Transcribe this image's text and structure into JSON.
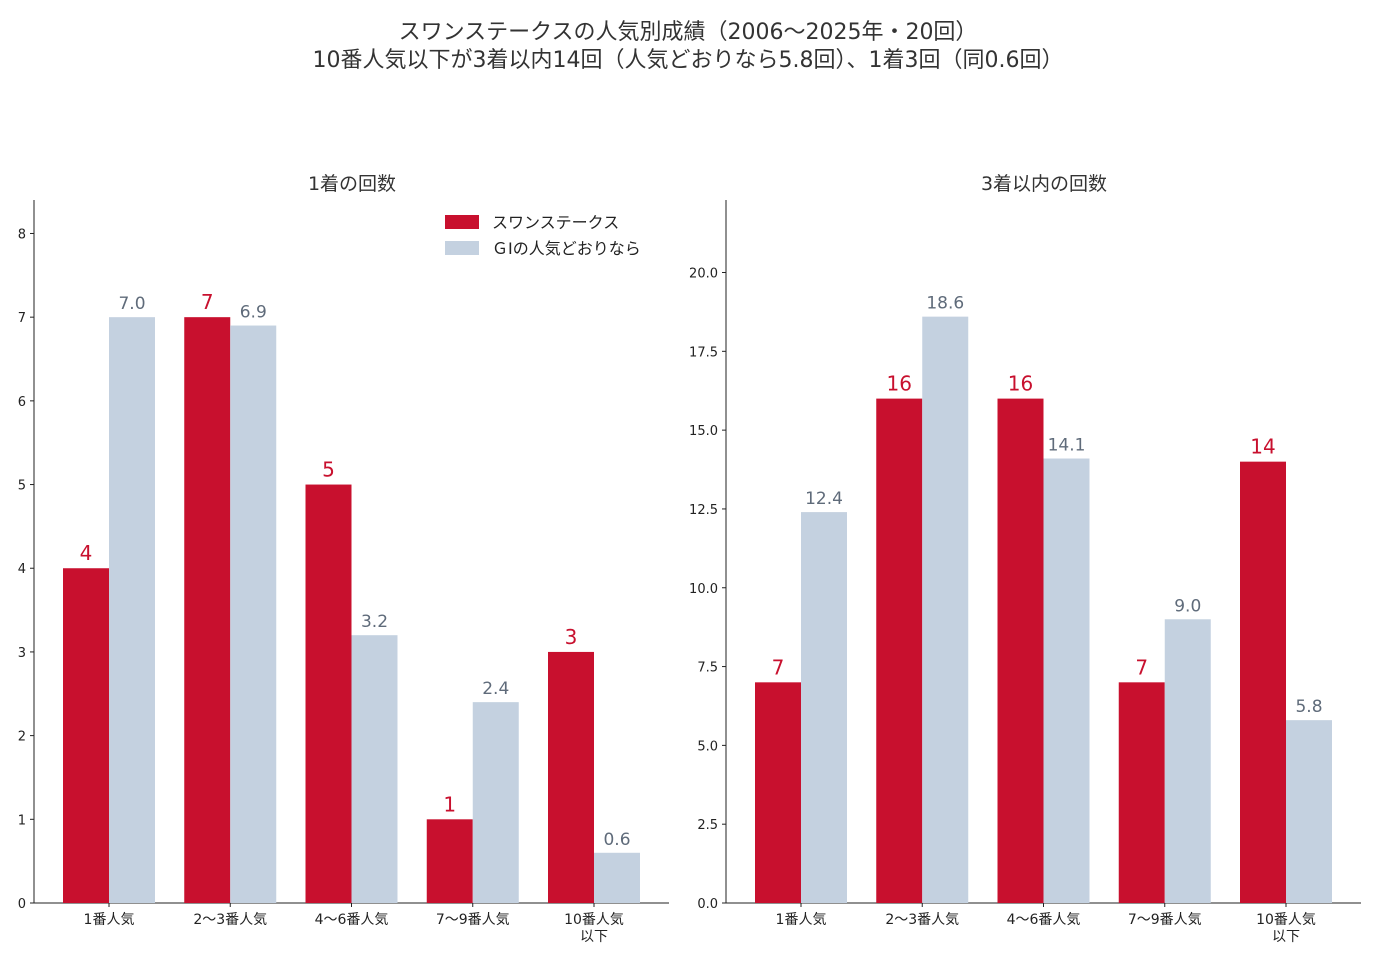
{
  "figure": {
    "title_line1": "スワンステークスの人気別成績（2006〜2025年・20回）",
    "title_line2": "10番人気以下が3着以内14回（人気どおりなら5.8回）、1着3回（同0.6回）"
  },
  "colors": {
    "actual": "#c8102e",
    "expected": "#c4d1e0",
    "expected_label": "#5f6b7a",
    "axis": "#222222"
  },
  "chart_data": [
    {
      "type": "bar",
      "title": "1着の回数",
      "categories": [
        [
          "1番人気"
        ],
        [
          "2〜3番人気"
        ],
        [
          "4〜6番人気"
        ],
        [
          "7〜9番人気"
        ],
        [
          "10番人気",
          "以下"
        ]
      ],
      "series": [
        {
          "name": "スワンステークス",
          "values": [
            4,
            7,
            5,
            1,
            3
          ],
          "labels": [
            "4",
            "7",
            "5",
            "1",
            "3"
          ]
        },
        {
          "name": "ＧⅠの人気どおりなら",
          "values": [
            7.0,
            6.9,
            3.2,
            2.4,
            0.6
          ],
          "labels": [
            "7.0",
            "6.9",
            "3.2",
            "2.4",
            "0.6"
          ]
        }
      ],
      "ylim": [
        0,
        8.4
      ],
      "yticks": [
        "0",
        "1",
        "2",
        "3",
        "4",
        "5",
        "6",
        "7",
        "8"
      ],
      "ytick_values": [
        0,
        1,
        2,
        3,
        4,
        5,
        6,
        7,
        8
      ],
      "legend": "top-right",
      "grid": false
    },
    {
      "type": "bar",
      "title": "3着以内の回数",
      "categories": [
        [
          "1番人気"
        ],
        [
          "2〜3番人気"
        ],
        [
          "4〜6番人気"
        ],
        [
          "7〜9番人気"
        ],
        [
          "10番人気",
          "以下"
        ]
      ],
      "series": [
        {
          "name": "スワンステークス",
          "values": [
            7,
            16,
            16,
            7,
            14
          ],
          "labels": [
            "7",
            "16",
            "16",
            "7",
            "14"
          ]
        },
        {
          "name": "ＧⅠの人気どおりなら",
          "values": [
            12.4,
            18.6,
            14.1,
            9.0,
            5.8
          ],
          "labels": [
            "12.4",
            "18.6",
            "14.1",
            "9.0",
            "5.8"
          ]
        }
      ],
      "ylim": [
        0,
        22.3
      ],
      "yticks": [
        "0.0",
        "2.5",
        "5.0",
        "7.5",
        "10.0",
        "12.5",
        "15.0",
        "17.5",
        "20.0"
      ],
      "ytick_values": [
        0,
        2.5,
        5,
        7.5,
        10,
        12.5,
        15,
        17.5,
        20
      ],
      "grid": false
    }
  ]
}
